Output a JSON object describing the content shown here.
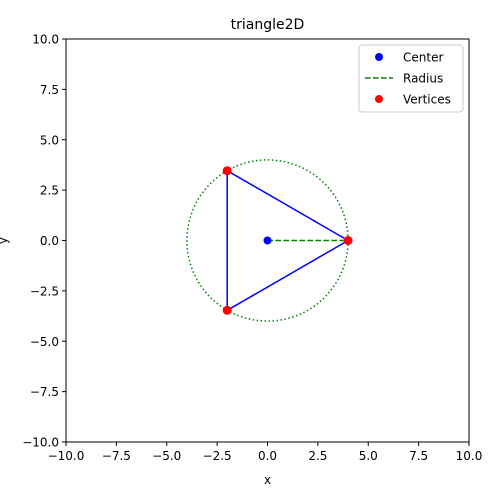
{
  "chart_data": {
    "type": "scatter",
    "title": "triangle2D",
    "xlabel": "x",
    "ylabel": "y",
    "xlim": [
      -10,
      10
    ],
    "ylim": [
      -10,
      10
    ],
    "xticks": [
      "−10.0",
      "−7.5",
      "−5.0",
      "−2.5",
      "0.0",
      "2.5",
      "5.0",
      "7.5",
      "10.0"
    ],
    "yticks": [
      "−10.0",
      "−7.5",
      "−5.0",
      "−2.5",
      "0.0",
      "2.5",
      "5.0",
      "7.5",
      "10.0"
    ],
    "grid": false,
    "legend_position": "top-right",
    "center": {
      "x": 0,
      "y": 0
    },
    "radius_line": {
      "x": [
        0,
        4
      ],
      "y": [
        0,
        0
      ]
    },
    "vertices": [
      {
        "x": 4,
        "y": 0
      },
      {
        "x": -2,
        "y": 3.464
      },
      {
        "x": -2,
        "y": -3.464
      }
    ],
    "circle": {
      "cx": 0,
      "cy": 0,
      "r": 4
    },
    "series": [
      {
        "name": "Center",
        "color": "#0000ff",
        "marker": "circle"
      },
      {
        "name": "Radius",
        "color": "#008000",
        "style": "dashed"
      },
      {
        "name": "Vertices",
        "color": "#ff0000",
        "marker": "circle"
      }
    ],
    "triangle_color": "#0000ff",
    "circle_color": "#008000"
  }
}
